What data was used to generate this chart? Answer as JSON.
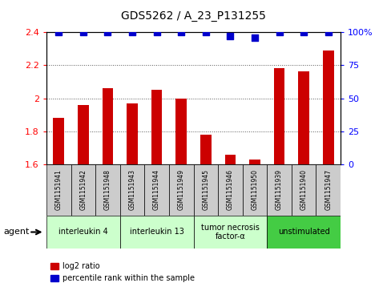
{
  "title": "GDS5262 / A_23_P131255",
  "samples": [
    "GSM1151941",
    "GSM1151942",
    "GSM1151948",
    "GSM1151943",
    "GSM1151944",
    "GSM1151949",
    "GSM1151945",
    "GSM1151946",
    "GSM1151950",
    "GSM1151939",
    "GSM1151940",
    "GSM1151947"
  ],
  "log2_values": [
    1.88,
    1.96,
    2.06,
    1.97,
    2.05,
    2.0,
    1.78,
    1.66,
    1.63,
    2.18,
    2.16,
    2.29
  ],
  "percentile_values": [
    100,
    100,
    100,
    100,
    100,
    100,
    100,
    97,
    96,
    100,
    100,
    100
  ],
  "bar_color": "#cc0000",
  "dot_color": "#0000cc",
  "ylim_left": [
    1.6,
    2.4
  ],
  "ylim_right": [
    0,
    100
  ],
  "yticks_left": [
    1.6,
    1.8,
    2.0,
    2.2,
    2.4
  ],
  "yticks_right": [
    0,
    25,
    50,
    75,
    100
  ],
  "ytick_labels_right": [
    "0",
    "25",
    "50",
    "75",
    "100%"
  ],
  "groups": [
    {
      "label": "interleukin 4",
      "start": 0,
      "end": 3,
      "color": "#ccffcc"
    },
    {
      "label": "interleukin 13",
      "start": 3,
      "end": 6,
      "color": "#ccffcc"
    },
    {
      "label": "tumor necrosis\nfactor-α",
      "start": 6,
      "end": 9,
      "color": "#ccffcc"
    },
    {
      "label": "unstimulated",
      "start": 9,
      "end": 12,
      "color": "#44cc44"
    }
  ],
  "agent_label": "agent",
  "legend_bar_label": "log2 ratio",
  "legend_dot_label": "percentile rank within the sample",
  "background_color": "#ffffff",
  "plot_bg_color": "#ffffff",
  "grid_color": "#555555",
  "bar_width": 0.45,
  "dot_size": 28,
  "sample_box_color": "#cccccc",
  "fig_width": 4.83,
  "fig_height": 3.63,
  "dpi": 100
}
